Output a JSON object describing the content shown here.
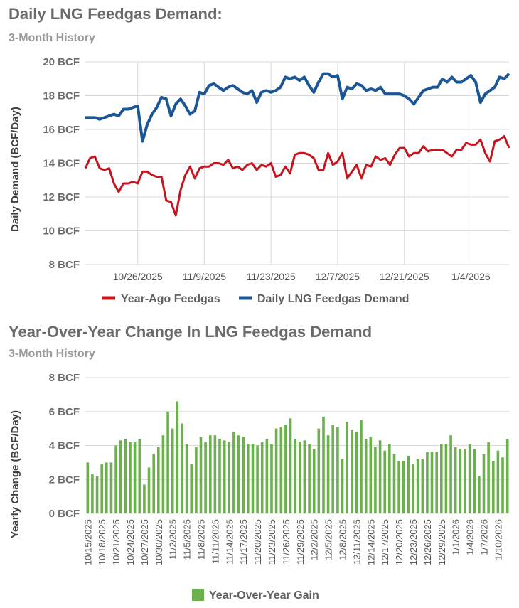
{
  "chart1": {
    "title": "Daily LNG Feedgas Demand:",
    "subtitle": "3-Month History"
  },
  "chart2": {
    "title": "Year-Over-Year Change In LNG Feedgas Demand",
    "subtitle": "3-Month History"
  },
  "colors": {
    "blue": "#1b5796",
    "red": "#c8141e",
    "green": "#6ab04c",
    "grid": "#d9d9d9"
  },
  "chart_data": [
    {
      "type": "line",
      "title": "Daily LNG Feedgas Demand:",
      "subtitle": "3-Month History",
      "ylabel": "Daily Demand (BCF/Day)",
      "xlabel": "",
      "ylim": [
        8,
        20
      ],
      "yticks": [
        8,
        10,
        12,
        14,
        16,
        18,
        20
      ],
      "ytick_labels": [
        "8 BCF",
        "10 BCF",
        "12 BCF",
        "14 BCF",
        "16 BCF",
        "18 BCF",
        "20 BCF"
      ],
      "x_start": "10/15/2025",
      "x_tick_labels": [
        {
          "label": "10/26/2025",
          "index": 11
        },
        {
          "label": "11/9/2025",
          "index": 25
        },
        {
          "label": "11/23/2025",
          "index": 39
        },
        {
          "label": "12/7/2025",
          "index": 53
        },
        {
          "label": "12/21/2025",
          "index": 67
        },
        {
          "label": "1/4/2026",
          "index": 81
        }
      ],
      "legend": [
        "Year-Ago Feedgas",
        "Daily LNG Feedgas Demand"
      ],
      "legend_position": "bottom",
      "series": [
        {
          "name": "Year-Ago Feedgas",
          "color": "#c8141e",
          "values": [
            13.7,
            14.3,
            14.4,
            13.7,
            13.6,
            13.7,
            12.8,
            12.3,
            12.8,
            12.8,
            12.9,
            12.8,
            13.5,
            13.5,
            13.3,
            13.2,
            13.2,
            11.8,
            11.7,
            10.9,
            12.4,
            13.3,
            13.8,
            13.1,
            13.7,
            13.8,
            13.8,
            14.0,
            14.0,
            13.9,
            14.2,
            13.7,
            13.8,
            13.6,
            13.9,
            14.0,
            13.6,
            13.9,
            13.8,
            14.0,
            13.2,
            13.3,
            13.8,
            13.4,
            14.5,
            14.6,
            14.6,
            14.5,
            14.3,
            13.6,
            13.6,
            14.6,
            13.9,
            14.1,
            14.6,
            13.1,
            13.5,
            13.9,
            13.1,
            13.9,
            13.8,
            14.4,
            14.2,
            14.3,
            13.9,
            14.5,
            14.9,
            14.9,
            14.4,
            14.6,
            14.6,
            15.0,
            14.7,
            14.8,
            14.8,
            14.8,
            14.6,
            14.4,
            14.8,
            14.8,
            15.2,
            15.1,
            15.1,
            15.4,
            14.6,
            14.1,
            15.3,
            15.4,
            15.6,
            14.9
          ]
        },
        {
          "name": "Daily LNG Feedgas Demand",
          "color": "#1b5796",
          "values": [
            16.7,
            16.7,
            16.7,
            16.6,
            16.7,
            16.8,
            16.9,
            16.8,
            17.2,
            17.2,
            17.3,
            17.4,
            15.3,
            16.3,
            16.9,
            17.3,
            17.9,
            17.8,
            16.8,
            17.5,
            17.8,
            17.4,
            16.9,
            17.1,
            18.2,
            18.1,
            18.6,
            18.7,
            18.5,
            18.3,
            18.5,
            18.6,
            18.4,
            18.2,
            18.1,
            18.3,
            17.6,
            18.2,
            18.3,
            18.2,
            18.3,
            18.5,
            19.1,
            19.0,
            19.1,
            18.9,
            19.1,
            18.6,
            18.2,
            18.8,
            19.3,
            19.3,
            19.1,
            19.2,
            17.8,
            18.5,
            18.4,
            18.7,
            18.6,
            18.3,
            18.4,
            18.3,
            18.5,
            18.1,
            18.1,
            18.1,
            18.1,
            18.0,
            17.8,
            17.5,
            17.9,
            18.3,
            18.4,
            18.5,
            18.5,
            19.0,
            18.8,
            19.1,
            18.8,
            18.8,
            19.0,
            19.2,
            18.8,
            17.6,
            18.1,
            18.3,
            18.5,
            19.1,
            19.0,
            19.3
          ]
        }
      ]
    },
    {
      "type": "bar",
      "title": "Year-Over-Year Change In LNG Feedgas Demand",
      "subtitle": "3-Month History",
      "ylabel": "Yearly Change (BCF/Day)",
      "xlabel": "",
      "ylim": [
        0,
        8
      ],
      "yticks": [
        0,
        2,
        4,
        6,
        8
      ],
      "ytick_labels": [
        "0 BCF",
        "2 BCF",
        "4 BCF",
        "6 BCF",
        "8 BCF"
      ],
      "x_tick_labels": [
        {
          "label": "10/15/2025",
          "index": 0
        },
        {
          "label": "10/18/2025",
          "index": 3
        },
        {
          "label": "10/21/2025",
          "index": 6
        },
        {
          "label": "10/24/2025",
          "index": 9
        },
        {
          "label": "10/27/2025",
          "index": 12
        },
        {
          "label": "10/30/2025",
          "index": 15
        },
        {
          "label": "11/2/2025",
          "index": 18
        },
        {
          "label": "11/5/2025",
          "index": 21
        },
        {
          "label": "11/8/2025",
          "index": 24
        },
        {
          "label": "11/11/2025",
          "index": 27
        },
        {
          "label": "11/14/2025",
          "index": 30
        },
        {
          "label": "11/17/2025",
          "index": 33
        },
        {
          "label": "11/20/2025",
          "index": 36
        },
        {
          "label": "11/23/2025",
          "index": 39
        },
        {
          "label": "11/26/2025",
          "index": 42
        },
        {
          "label": "11/29/2025",
          "index": 45
        },
        {
          "label": "12/2/2025",
          "index": 48
        },
        {
          "label": "12/5/2025",
          "index": 51
        },
        {
          "label": "12/8/2025",
          "index": 54
        },
        {
          "label": "12/11/2025",
          "index": 57
        },
        {
          "label": "12/14/2025",
          "index": 60
        },
        {
          "label": "12/17/2025",
          "index": 63
        },
        {
          "label": "12/20/2025",
          "index": 66
        },
        {
          "label": "12/23/2025",
          "index": 69
        },
        {
          "label": "12/26/2025",
          "index": 72
        },
        {
          "label": "12/29/2025",
          "index": 75
        },
        {
          "label": "1/1/2026",
          "index": 78
        },
        {
          "label": "1/4/2026",
          "index": 81
        },
        {
          "label": "1/7/2026",
          "index": 84
        },
        {
          "label": "1/10/2026",
          "index": 87
        }
      ],
      "legend": [
        "Year-Over-Year Gain"
      ],
      "legend_position": "bottom",
      "series": [
        {
          "name": "Year-Over-Year Gain",
          "color": "#6ab04c",
          "values": [
            3.0,
            2.3,
            2.2,
            2.9,
            3.0,
            3.0,
            4.0,
            4.3,
            4.4,
            4.2,
            4.2,
            4.4,
            1.7,
            2.7,
            3.5,
            3.9,
            4.6,
            6.0,
            5.0,
            6.6,
            5.3,
            4.1,
            2.9,
            3.9,
            4.5,
            4.2,
            4.6,
            4.6,
            4.4,
            4.3,
            4.2,
            4.8,
            4.6,
            4.5,
            4.1,
            4.1,
            4.0,
            4.2,
            4.4,
            4.1,
            5.0,
            5.1,
            5.2,
            5.6,
            4.4,
            4.2,
            4.3,
            4.1,
            3.8,
            5.0,
            5.7,
            4.6,
            5.2,
            5.1,
            3.2,
            5.4,
            4.9,
            4.8,
            5.5,
            4.4,
            4.5,
            3.9,
            4.3,
            3.7,
            4.1,
            3.5,
            3.1,
            3.1,
            3.4,
            2.9,
            3.2,
            3.2,
            3.6,
            3.6,
            3.6,
            4.1,
            4.1,
            4.6,
            3.9,
            3.8,
            3.8,
            4.1,
            3.8,
            2.2,
            3.5,
            4.2,
            3.1,
            3.7,
            3.3,
            4.4
          ]
        }
      ]
    }
  ]
}
